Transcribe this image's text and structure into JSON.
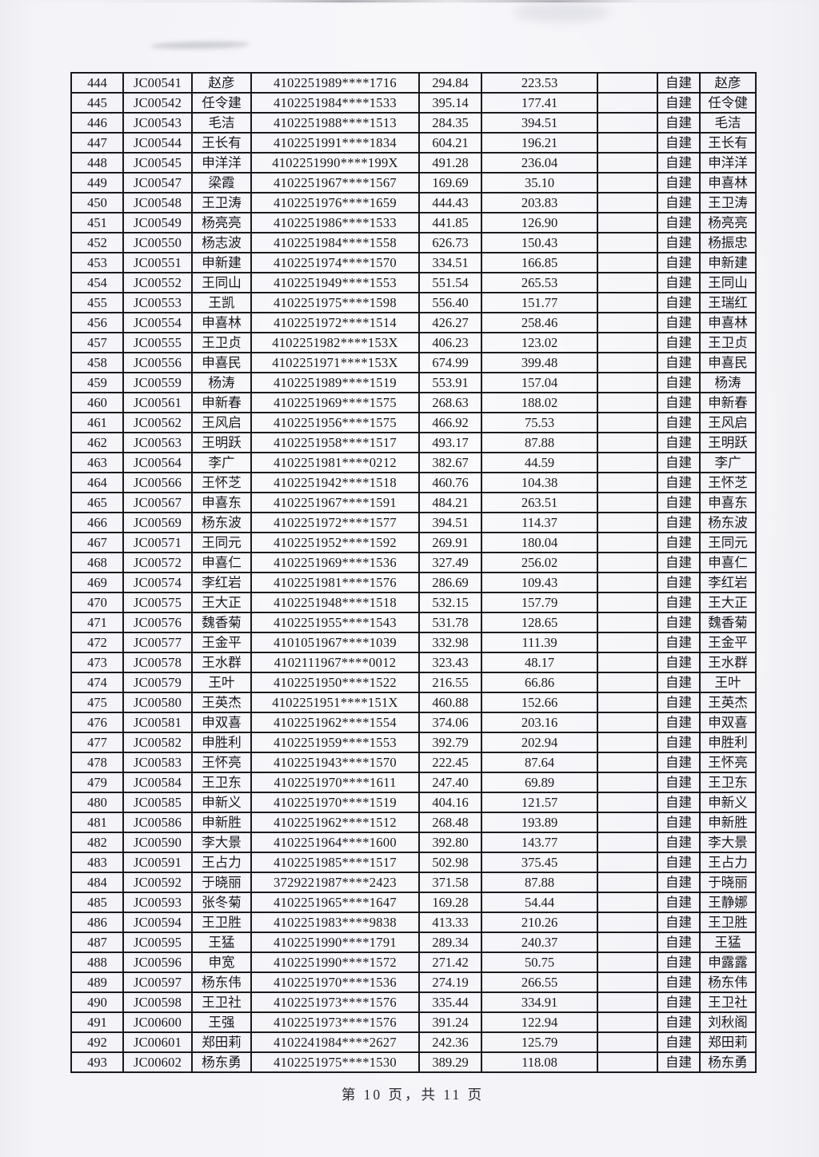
{
  "footer": {
    "text": "第 10 页，共 11 页"
  },
  "table": {
    "columns": [
      "seq",
      "code",
      "name",
      "id_number",
      "amount1",
      "amount2",
      "blank",
      "build_type",
      "confirm_name"
    ],
    "rows": [
      {
        "seq": "444",
        "code": "JC00541",
        "name": "赵彦",
        "id_number": "4102251989****1716",
        "amount1": "294.84",
        "amount2": "223.53",
        "blank": "",
        "build_type": "自建",
        "confirm_name": "赵彦"
      },
      {
        "seq": "445",
        "code": "JC00542",
        "name": "任令建",
        "id_number": "4102251984****1533",
        "amount1": "395.14",
        "amount2": "177.41",
        "blank": "",
        "build_type": "自建",
        "confirm_name": "任令健"
      },
      {
        "seq": "446",
        "code": "JC00543",
        "name": "毛洁",
        "id_number": "4102251988****1513",
        "amount1": "284.35",
        "amount2": "394.51",
        "blank": "",
        "build_type": "自建",
        "confirm_name": "毛洁"
      },
      {
        "seq": "447",
        "code": "JC00544",
        "name": "王长有",
        "id_number": "4102251991****1834",
        "amount1": "604.21",
        "amount2": "196.21",
        "blank": "",
        "build_type": "自建",
        "confirm_name": "王长有"
      },
      {
        "seq": "448",
        "code": "JC00545",
        "name": "申洋洋",
        "id_number": "4102251990****199X",
        "amount1": "491.28",
        "amount2": "236.04",
        "blank": "",
        "build_type": "自建",
        "confirm_name": "申洋洋"
      },
      {
        "seq": "449",
        "code": "JC00547",
        "name": "梁霞",
        "id_number": "4102251967****1567",
        "amount1": "169.69",
        "amount2": "35.10",
        "blank": "",
        "build_type": "自建",
        "confirm_name": "申喜林"
      },
      {
        "seq": "450",
        "code": "JC00548",
        "name": "王卫涛",
        "id_number": "4102251976****1659",
        "amount1": "444.43",
        "amount2": "203.83",
        "blank": "",
        "build_type": "自建",
        "confirm_name": "王卫涛"
      },
      {
        "seq": "451",
        "code": "JC00549",
        "name": "杨亮亮",
        "id_number": "4102251986****1533",
        "amount1": "441.85",
        "amount2": "126.90",
        "blank": "",
        "build_type": "自建",
        "confirm_name": "杨亮亮"
      },
      {
        "seq": "452",
        "code": "JC00550",
        "name": "杨志波",
        "id_number": "4102251984****1558",
        "amount1": "626.73",
        "amount2": "150.43",
        "blank": "",
        "build_type": "自建",
        "confirm_name": "杨振忠"
      },
      {
        "seq": "453",
        "code": "JC00551",
        "name": "申新建",
        "id_number": "4102251974****1570",
        "amount1": "334.51",
        "amount2": "166.85",
        "blank": "",
        "build_type": "自建",
        "confirm_name": "申新建"
      },
      {
        "seq": "454",
        "code": "JC00552",
        "name": "王同山",
        "id_number": "4102251949****1553",
        "amount1": "551.54",
        "amount2": "265.53",
        "blank": "",
        "build_type": "自建",
        "confirm_name": "王同山"
      },
      {
        "seq": "455",
        "code": "JC00553",
        "name": "王凯",
        "id_number": "4102251975****1598",
        "amount1": "556.40",
        "amount2": "151.77",
        "blank": "",
        "build_type": "自建",
        "confirm_name": "王瑞红"
      },
      {
        "seq": "456",
        "code": "JC00554",
        "name": "申喜林",
        "id_number": "4102251972****1514",
        "amount1": "426.27",
        "amount2": "258.46",
        "blank": "",
        "build_type": "自建",
        "confirm_name": "申喜林"
      },
      {
        "seq": "457",
        "code": "JC00555",
        "name": "王卫贞",
        "id_number": "4102251982****153X",
        "amount1": "406.23",
        "amount2": "123.02",
        "blank": "",
        "build_type": "自建",
        "confirm_name": "王卫贞"
      },
      {
        "seq": "458",
        "code": "JC00556",
        "name": "申喜民",
        "id_number": "4102251971****153X",
        "amount1": "674.99",
        "amount2": "399.48",
        "blank": "",
        "build_type": "自建",
        "confirm_name": "申喜民"
      },
      {
        "seq": "459",
        "code": "JC00559",
        "name": "杨涛",
        "id_number": "4102251989****1519",
        "amount1": "553.91",
        "amount2": "157.04",
        "blank": "",
        "build_type": "自建",
        "confirm_name": "杨涛"
      },
      {
        "seq": "460",
        "code": "JC00561",
        "name": "申新春",
        "id_number": "4102251969****1575",
        "amount1": "268.63",
        "amount2": "188.02",
        "blank": "",
        "build_type": "自建",
        "confirm_name": "申新春"
      },
      {
        "seq": "461",
        "code": "JC00562",
        "name": "王风启",
        "id_number": "4102251956****1575",
        "amount1": "466.92",
        "amount2": "75.53",
        "blank": "",
        "build_type": "自建",
        "confirm_name": "王风启"
      },
      {
        "seq": "462",
        "code": "JC00563",
        "name": "王明跃",
        "id_number": "4102251958****1517",
        "amount1": "493.17",
        "amount2": "87.88",
        "blank": "",
        "build_type": "自建",
        "confirm_name": "王明跃"
      },
      {
        "seq": "463",
        "code": "JC00564",
        "name": "李广",
        "id_number": "4102251981****0212",
        "amount1": "382.67",
        "amount2": "44.59",
        "blank": "",
        "build_type": "自建",
        "confirm_name": "李广"
      },
      {
        "seq": "464",
        "code": "JC00566",
        "name": "王怀芝",
        "id_number": "4102251942****1518",
        "amount1": "460.76",
        "amount2": "104.38",
        "blank": "",
        "build_type": "自建",
        "confirm_name": "王怀芝"
      },
      {
        "seq": "465",
        "code": "JC00567",
        "name": "申喜东",
        "id_number": "4102251967****1591",
        "amount1": "484.21",
        "amount2": "263.51",
        "blank": "",
        "build_type": "自建",
        "confirm_name": "申喜东"
      },
      {
        "seq": "466",
        "code": "JC00569",
        "name": "杨东波",
        "id_number": "4102251972****1577",
        "amount1": "394.51",
        "amount2": "114.37",
        "blank": "",
        "build_type": "自建",
        "confirm_name": "杨东波"
      },
      {
        "seq": "467",
        "code": "JC00571",
        "name": "王同元",
        "id_number": "4102251952****1592",
        "amount1": "269.91",
        "amount2": "180.04",
        "blank": "",
        "build_type": "自建",
        "confirm_name": "王同元"
      },
      {
        "seq": "468",
        "code": "JC00572",
        "name": "申喜仁",
        "id_number": "4102251969****1536",
        "amount1": "327.49",
        "amount2": "256.02",
        "blank": "",
        "build_type": "自建",
        "confirm_name": "申喜仁"
      },
      {
        "seq": "469",
        "code": "JC00574",
        "name": "李红岩",
        "id_number": "4102251981****1576",
        "amount1": "286.69",
        "amount2": "109.43",
        "blank": "",
        "build_type": "自建",
        "confirm_name": "李红岩"
      },
      {
        "seq": "470",
        "code": "JC00575",
        "name": "王大正",
        "id_number": "4102251948****1518",
        "amount1": "532.15",
        "amount2": "157.79",
        "blank": "",
        "build_type": "自建",
        "confirm_name": "王大正"
      },
      {
        "seq": "471",
        "code": "JC00576",
        "name": "魏香菊",
        "id_number": "4102251955****1543",
        "amount1": "531.78",
        "amount2": "128.65",
        "blank": "",
        "build_type": "自建",
        "confirm_name": "魏香菊"
      },
      {
        "seq": "472",
        "code": "JC00577",
        "name": "王金平",
        "id_number": "4101051967****1039",
        "amount1": "332.98",
        "amount2": "111.39",
        "blank": "",
        "build_type": "自建",
        "confirm_name": "王金平"
      },
      {
        "seq": "473",
        "code": "JC00578",
        "name": "王水群",
        "id_number": "4102111967****0012",
        "amount1": "323.43",
        "amount2": "48.17",
        "blank": "",
        "build_type": "自建",
        "confirm_name": "王水群"
      },
      {
        "seq": "474",
        "code": "JC00579",
        "name": "王叶",
        "id_number": "4102251950****1522",
        "amount1": "216.55",
        "amount2": "66.86",
        "blank": "",
        "build_type": "自建",
        "confirm_name": "王叶"
      },
      {
        "seq": "475",
        "code": "JC00580",
        "name": "王英杰",
        "id_number": "4102251951****151X",
        "amount1": "460.88",
        "amount2": "152.66",
        "blank": "",
        "build_type": "自建",
        "confirm_name": "王英杰"
      },
      {
        "seq": "476",
        "code": "JC00581",
        "name": "申双喜",
        "id_number": "4102251962****1554",
        "amount1": "374.06",
        "amount2": "203.16",
        "blank": "",
        "build_type": "自建",
        "confirm_name": "申双喜"
      },
      {
        "seq": "477",
        "code": "JC00582",
        "name": "申胜利",
        "id_number": "4102251959****1553",
        "amount1": "392.79",
        "amount2": "202.94",
        "blank": "",
        "build_type": "自建",
        "confirm_name": "申胜利"
      },
      {
        "seq": "478",
        "code": "JC00583",
        "name": "王怀亮",
        "id_number": "4102251943****1570",
        "amount1": "222.45",
        "amount2": "87.64",
        "blank": "",
        "build_type": "自建",
        "confirm_name": "王怀亮"
      },
      {
        "seq": "479",
        "code": "JC00584",
        "name": "王卫东",
        "id_number": "4102251970****1611",
        "amount1": "247.40",
        "amount2": "69.89",
        "blank": "",
        "build_type": "自建",
        "confirm_name": "王卫东"
      },
      {
        "seq": "480",
        "code": "JC00585",
        "name": "申新义",
        "id_number": "4102251970****1519",
        "amount1": "404.16",
        "amount2": "121.57",
        "blank": "",
        "build_type": "自建",
        "confirm_name": "申新义"
      },
      {
        "seq": "481",
        "code": "JC00586",
        "name": "申新胜",
        "id_number": "4102251962****1512",
        "amount1": "268.48",
        "amount2": "193.89",
        "blank": "",
        "build_type": "自建",
        "confirm_name": "申新胜"
      },
      {
        "seq": "482",
        "code": "JC00590",
        "name": "李大景",
        "id_number": "4102251964****1600",
        "amount1": "392.80",
        "amount2": "143.77",
        "blank": "",
        "build_type": "自建",
        "confirm_name": "李大景"
      },
      {
        "seq": "483",
        "code": "JC00591",
        "name": "王占力",
        "id_number": "4102251985****1517",
        "amount1": "502.98",
        "amount2": "375.45",
        "blank": "",
        "build_type": "自建",
        "confirm_name": "王占力"
      },
      {
        "seq": "484",
        "code": "JC00592",
        "name": "于晓丽",
        "id_number": "3729221987****2423",
        "amount1": "371.58",
        "amount2": "87.88",
        "blank": "",
        "build_type": "自建",
        "confirm_name": "于晓丽"
      },
      {
        "seq": "485",
        "code": "JC00593",
        "name": "张冬菊",
        "id_number": "4102251965****1647",
        "amount1": "169.28",
        "amount2": "54.44",
        "blank": "",
        "build_type": "自建",
        "confirm_name": "王静娜"
      },
      {
        "seq": "486",
        "code": "JC00594",
        "name": "王卫胜",
        "id_number": "4102251983****9838",
        "amount1": "413.33",
        "amount2": "210.26",
        "blank": "",
        "build_type": "自建",
        "confirm_name": "王卫胜"
      },
      {
        "seq": "487",
        "code": "JC00595",
        "name": "王猛",
        "id_number": "4102251990****1791",
        "amount1": "289.34",
        "amount2": "240.37",
        "blank": "",
        "build_type": "自建",
        "confirm_name": "王猛"
      },
      {
        "seq": "488",
        "code": "JC00596",
        "name": "申宽",
        "id_number": "4102251990****1572",
        "amount1": "271.42",
        "amount2": "50.75",
        "blank": "",
        "build_type": "自建",
        "confirm_name": "申露露"
      },
      {
        "seq": "489",
        "code": "JC00597",
        "name": "杨东伟",
        "id_number": "4102251970****1536",
        "amount1": "274.19",
        "amount2": "266.55",
        "blank": "",
        "build_type": "自建",
        "confirm_name": "杨东伟"
      },
      {
        "seq": "490",
        "code": "JC00598",
        "name": "王卫社",
        "id_number": "4102251973****1576",
        "amount1": "335.44",
        "amount2": "334.91",
        "blank": "",
        "build_type": "自建",
        "confirm_name": "王卫社"
      },
      {
        "seq": "491",
        "code": "JC00600",
        "name": "王强",
        "id_number": "4102251973****1576",
        "amount1": "391.24",
        "amount2": "122.94",
        "blank": "",
        "build_type": "自建",
        "confirm_name": "刘秋阁"
      },
      {
        "seq": "492",
        "code": "JC00601",
        "name": "郑田莉",
        "id_number": "4102241984****2627",
        "amount1": "242.36",
        "amount2": "125.79",
        "blank": "",
        "build_type": "自建",
        "confirm_name": "郑田莉"
      },
      {
        "seq": "493",
        "code": "JC00602",
        "name": "杨东勇",
        "id_number": "4102251975****1530",
        "amount1": "389.29",
        "amount2": "118.08",
        "blank": "",
        "build_type": "自建",
        "confirm_name": "杨东勇"
      }
    ]
  }
}
